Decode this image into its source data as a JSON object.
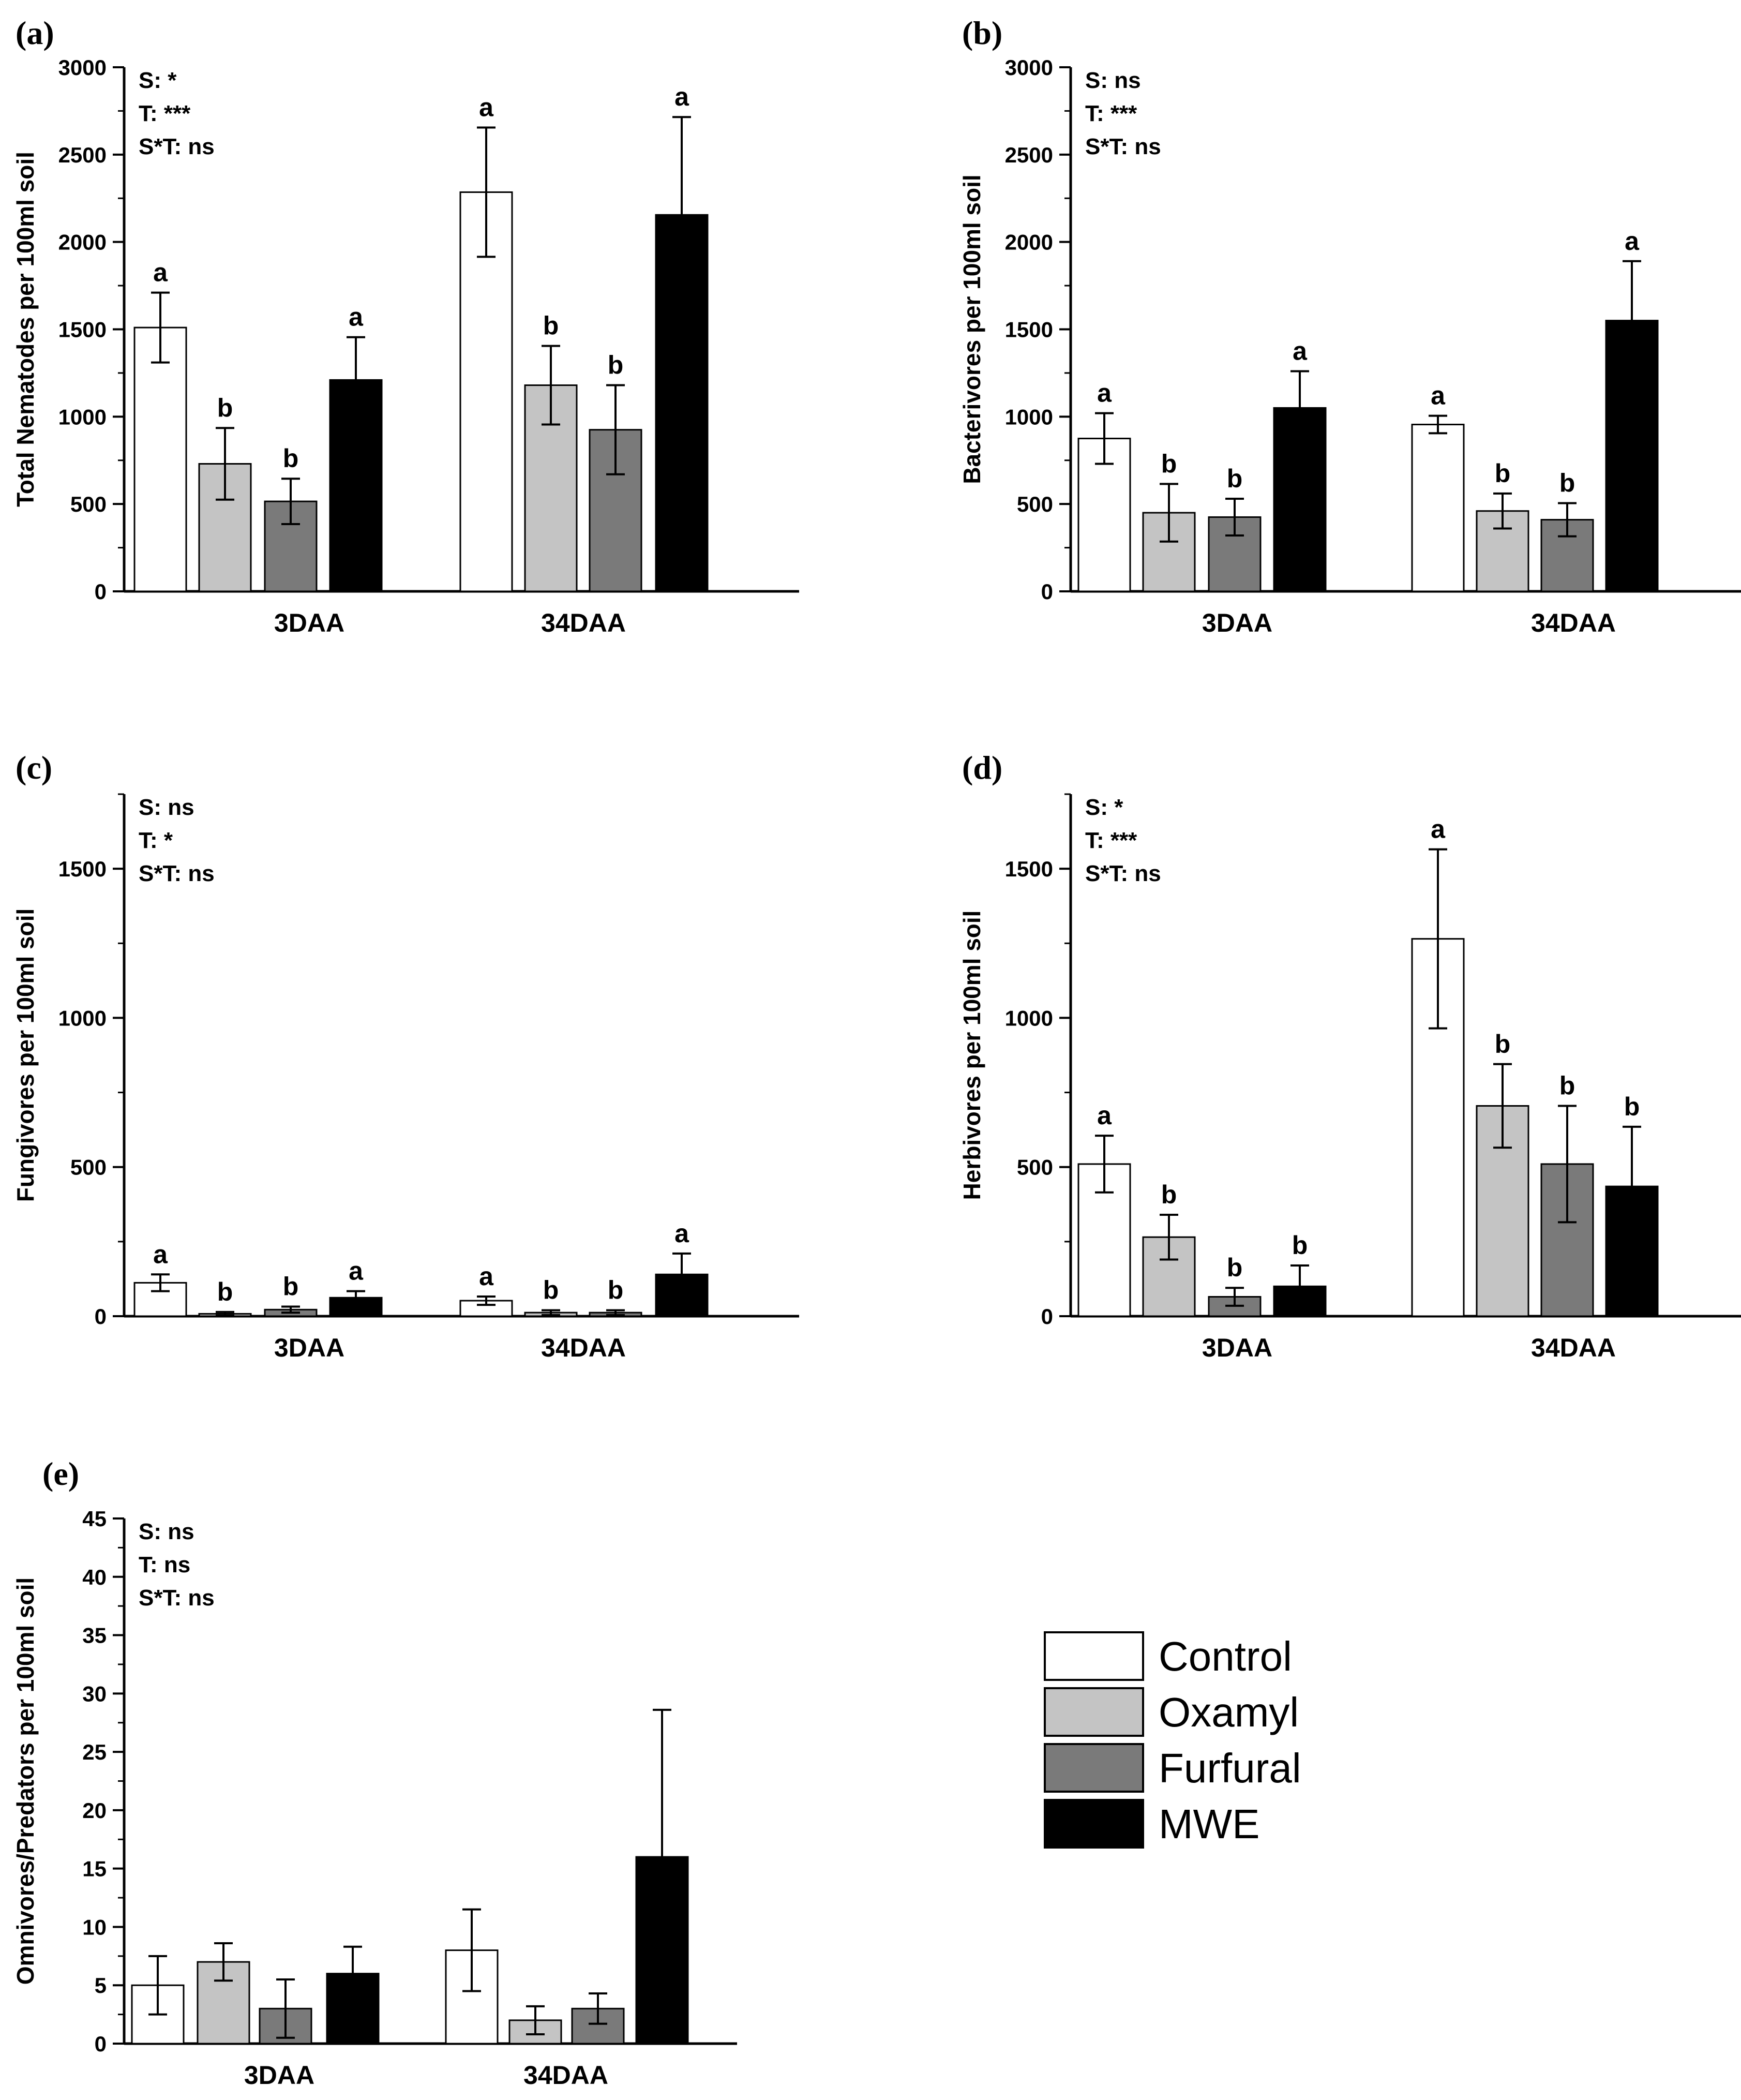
{
  "legend": [
    {
      "name": "Control",
      "color": "#ffffff"
    },
    {
      "name": "Oxamyl",
      "color": "#c4c4c4"
    },
    {
      "name": "Furfural",
      "color": "#7a7a7a"
    },
    {
      "name": "MWE",
      "color": "#000000"
    }
  ],
  "chart_data": [
    {
      "type": "bar",
      "panel_label": "(a)",
      "ylabel": "Total Nematodes per 100ml soil",
      "categories": [
        "3DAA",
        "34DAA"
      ],
      "ylim": [
        0,
        3000
      ],
      "yticks": [
        0,
        500,
        1000,
        1500,
        2000,
        2500,
        3000
      ],
      "stats": [
        "S: *",
        "T: ***",
        "S*T: ns"
      ],
      "series": [
        {
          "name": "Control",
          "values": [
            1510,
            2285
          ],
          "errors": [
            200,
            370
          ],
          "letters": [
            "a",
            "a"
          ]
        },
        {
          "name": "Oxamyl",
          "values": [
            730,
            1180
          ],
          "errors": [
            205,
            225
          ],
          "letters": [
            "b",
            "b"
          ]
        },
        {
          "name": "Furfural",
          "values": [
            515,
            925
          ],
          "errors": [
            130,
            255
          ],
          "letters": [
            "b",
            "b"
          ]
        },
        {
          "name": "MWE",
          "values": [
            1210,
            2155
          ],
          "errors": [
            245,
            560
          ],
          "letters": [
            "a",
            "a"
          ]
        }
      ]
    },
    {
      "type": "bar",
      "panel_label": "(b)",
      "ylabel": "Bacterivores per 100ml soil",
      "categories": [
        "3DAA",
        "34DAA"
      ],
      "ylim": [
        0,
        3000
      ],
      "yticks": [
        0,
        500,
        1000,
        1500,
        2000,
        2500,
        3000
      ],
      "stats": [
        "S: ns",
        "T: ***",
        "S*T: ns"
      ],
      "series": [
        {
          "name": "Control",
          "values": [
            875,
            955
          ],
          "errors": [
            145,
            50
          ],
          "letters": [
            "a",
            "a"
          ]
        },
        {
          "name": "Oxamyl",
          "values": [
            450,
            460
          ],
          "errors": [
            165,
            100
          ],
          "letters": [
            "b",
            "b"
          ]
        },
        {
          "name": "Furfural",
          "values": [
            425,
            410
          ],
          "errors": [
            105,
            95
          ],
          "letters": [
            "b",
            "b"
          ]
        },
        {
          "name": "MWE",
          "values": [
            1050,
            1550
          ],
          "errors": [
            210,
            340
          ],
          "letters": [
            "a",
            "a"
          ]
        }
      ]
    },
    {
      "type": "bar",
      "panel_label": "(c)",
      "ylabel": "Fungivores per 100ml soil",
      "categories": [
        "3DAA",
        "34DAA"
      ],
      "ylim": [
        0,
        1750
      ],
      "yticks": [
        0,
        500,
        1000,
        1500
      ],
      "stats": [
        "S: ns",
        "T: *",
        "S*T: ns"
      ],
      "series": [
        {
          "name": "Control",
          "values": [
            112,
            52
          ],
          "errors": [
            28,
            14
          ],
          "letters": [
            "a",
            "a"
          ]
        },
        {
          "name": "Oxamyl",
          "values": [
            8,
            12
          ],
          "errors": [
            6,
            8
          ],
          "letters": [
            "b",
            "b"
          ]
        },
        {
          "name": "Furfural",
          "values": [
            22,
            12
          ],
          "errors": [
            10,
            8
          ],
          "letters": [
            "b",
            "b"
          ]
        },
        {
          "name": "MWE",
          "values": [
            62,
            140
          ],
          "errors": [
            22,
            70
          ],
          "letters": [
            "a",
            "a"
          ]
        }
      ]
    },
    {
      "type": "bar",
      "panel_label": "(d)",
      "ylabel": "Herbivores per 100ml soil",
      "categories": [
        "3DAA",
        "34DAA"
      ],
      "ylim": [
        0,
        1750
      ],
      "yticks": [
        0,
        500,
        1000,
        1500
      ],
      "stats": [
        "S: *",
        "T: ***",
        "S*T: ns"
      ],
      "series": [
        {
          "name": "Control",
          "values": [
            510,
            1265
          ],
          "errors": [
            95,
            300
          ],
          "letters": [
            "a",
            "a"
          ]
        },
        {
          "name": "Oxamyl",
          "values": [
            265,
            705
          ],
          "errors": [
            75,
            140
          ],
          "letters": [
            "b",
            "b"
          ]
        },
        {
          "name": "Furfural",
          "values": [
            65,
            510
          ],
          "errors": [
            30,
            195
          ],
          "letters": [
            "b",
            "b"
          ]
        },
        {
          "name": "MWE",
          "values": [
            100,
            435
          ],
          "errors": [
            70,
            200
          ],
          "letters": [
            "b",
            "b"
          ]
        }
      ]
    },
    {
      "type": "bar",
      "panel_label": "(e)",
      "ylabel": "Omnivores/Predators per 100ml soil",
      "categories": [
        "3DAA",
        "34DAA"
      ],
      "ylim": [
        0,
        45
      ],
      "yticks": [
        0,
        5,
        10,
        15,
        20,
        25,
        30,
        35,
        40,
        45
      ],
      "stats": [
        "S: ns",
        "T: ns",
        "S*T: ns"
      ],
      "series": [
        {
          "name": "Control",
          "values": [
            5,
            8
          ],
          "errors": [
            2.5,
            3.5
          ],
          "letters": [
            "",
            ""
          ]
        },
        {
          "name": "Oxamyl",
          "values": [
            7,
            2
          ],
          "errors": [
            1.6,
            1.2
          ],
          "letters": [
            "",
            ""
          ]
        },
        {
          "name": "Furfural",
          "values": [
            3,
            3
          ],
          "errors": [
            2.5,
            1.3
          ],
          "letters": [
            "",
            ""
          ]
        },
        {
          "name": "MWE",
          "values": [
            6,
            16
          ],
          "errors": [
            2.3,
            12.6
          ],
          "letters": [
            "",
            ""
          ]
        }
      ]
    }
  ]
}
